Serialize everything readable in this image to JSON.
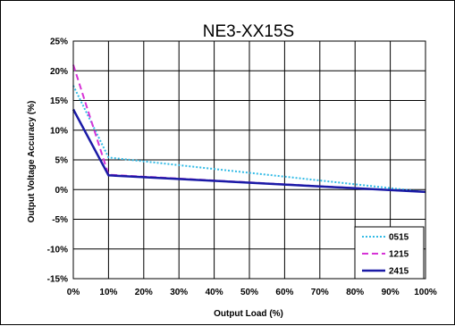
{
  "chart_data": {
    "type": "line",
    "title": "NE3-XX15S",
    "xlabel": "Output Load (%)",
    "ylabel": "Output Voltage Accuracy (%)",
    "x": [
      0,
      10,
      20,
      30,
      40,
      50,
      60,
      70,
      80,
      90,
      100
    ],
    "x_tick_labels": [
      "0%",
      "10%",
      "20%",
      "30%",
      "40%",
      "50%",
      "60%",
      "70%",
      "80%",
      "90%",
      "100%"
    ],
    "y_ticks": [
      -15,
      -10,
      -5,
      0,
      5,
      10,
      15,
      20,
      25
    ],
    "y_tick_labels": [
      "-15%",
      "-10%",
      "-5%",
      "0%",
      "5%",
      "10%",
      "15%",
      "20%",
      "25%"
    ],
    "xlim": [
      0,
      100
    ],
    "ylim": [
      -15,
      25
    ],
    "grid": true,
    "legend_position": "bottom-right",
    "series": [
      {
        "name": "0515",
        "x": [
          0,
          10,
          100
        ],
        "values": [
          17.5,
          5.4,
          -0.4
        ],
        "color": "#33bbe6",
        "style": "dotted"
      },
      {
        "name": "1215",
        "x": [
          0,
          10,
          100
        ],
        "values": [
          21,
          2.5,
          -0.4
        ],
        "color": "#d633d6",
        "style": "dashed"
      },
      {
        "name": "2415",
        "x": [
          0,
          10,
          100
        ],
        "values": [
          13.5,
          2.4,
          -0.4
        ],
        "color": "#1a1aa6",
        "style": "solid"
      }
    ]
  }
}
